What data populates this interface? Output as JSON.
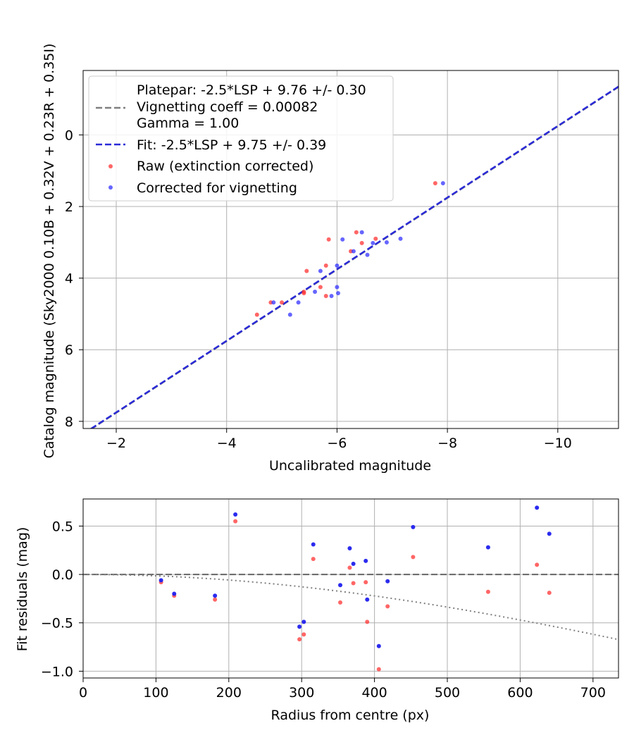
{
  "chart_data": [
    {
      "type": "scatter",
      "xlabel": "Uncalibrated magnitude",
      "ylabel": "Catalog magnitude (Sky2000 0.10B + 0.32V + 0.23R + 0.35I)",
      "xlim": [
        -1.4,
        -11.1
      ],
      "ylim": [
        8.2,
        -1.8
      ],
      "x_inverted": true,
      "y_inverted": true,
      "xticks": [
        -2,
        -4,
        -6,
        -8,
        -10
      ],
      "xtick_labels": [
        "−2",
        "−4",
        "−6",
        "−8",
        "−10"
      ],
      "yticks": [
        0,
        2,
        4,
        6,
        8
      ],
      "ytick_labels": [
        "0",
        "2",
        "4",
        "6",
        "8"
      ],
      "grid": true,
      "legend_position": "upper-left",
      "legend": [
        {
          "label_lines": [
            "Platepar: -2.5*LSP + 9.76 +/- 0.30",
            "Vignetting coeff = 0.00082",
            "Gamma = 1.00"
          ],
          "style": "dashed",
          "color": "#808080"
        },
        {
          "label_lines": [
            "Fit: -2.5*LSP + 9.75 +/- 0.39"
          ],
          "style": "dashed",
          "color": "#2a2ad8"
        },
        {
          "label_lines": [
            "Raw (extinction corrected)"
          ],
          "style": "marker",
          "color": "#ff3333"
        },
        {
          "label_lines": [
            "Corrected for vignetting"
          ],
          "style": "marker",
          "color": "#3333ff"
        }
      ],
      "lines": [
        {
          "name": "Platepar: -2.5*LSP + 9.76 +/- 0.30",
          "slope": 1,
          "intercept": 9.76,
          "color": "#808080",
          "dash": "dashed"
        },
        {
          "name": "Fit: -2.5*LSP + 9.75 +/- 0.39",
          "slope": 1,
          "intercept": 9.75,
          "color": "#2a2ad8",
          "dash": "dashed"
        }
      ],
      "series": [
        {
          "name": "Raw (extinction corrected)",
          "color": "#ff3333",
          "points": [
            [
              -4.55,
              5.02
            ],
            [
              -4.8,
              4.68
            ],
            [
              -5.0,
              4.68
            ],
            [
              -5.4,
              4.42
            ],
            [
              -5.4,
              4.38
            ],
            [
              -5.45,
              3.8
            ],
            [
              -5.7,
              4.25
            ],
            [
              -5.8,
              4.5
            ],
            [
              -5.8,
              3.65
            ],
            [
              -5.85,
              2.92
            ],
            [
              -6.25,
              3.25
            ],
            [
              -6.35,
              2.72
            ],
            [
              -6.45,
              3.02
            ],
            [
              -6.7,
              2.9
            ],
            [
              -7.78,
              1.35
            ]
          ]
        },
        {
          "name": "Corrected for vignetting",
          "color": "#3333ff",
          "points": [
            [
              -4.85,
              4.68
            ],
            [
              -5.15,
              5.02
            ],
            [
              -5.3,
              4.68
            ],
            [
              -5.6,
              4.38
            ],
            [
              -5.7,
              3.8
            ],
            [
              -5.9,
              4.5
            ],
            [
              -6.0,
              3.65
            ],
            [
              -6.0,
              4.25
            ],
            [
              -6.02,
              4.42
            ],
            [
              -6.1,
              2.92
            ],
            [
              -6.3,
              3.25
            ],
            [
              -6.45,
              2.72
            ],
            [
              -6.55,
              3.35
            ],
            [
              -6.65,
              3.02
            ],
            [
              -6.9,
              3.0
            ],
            [
              -7.15,
              2.9
            ],
            [
              -7.92,
              1.35
            ]
          ]
        }
      ]
    },
    {
      "type": "scatter",
      "xlabel": "Radius from centre (px)",
      "ylabel": "Fit residuals (mag)",
      "xlim": [
        0,
        735
      ],
      "ylim": [
        -1.07,
        0.78
      ],
      "xticks": [
        0,
        100,
        200,
        300,
        400,
        500,
        600,
        700
      ],
      "xtick_labels": [
        "0",
        "100",
        "200",
        "300",
        "400",
        "500",
        "600",
        "700"
      ],
      "yticks": [
        0.5,
        0.0,
        -0.5,
        -1.0
      ],
      "ytick_labels": [
        "0.5",
        "0.0",
        "−0.5",
        "−1.0"
      ],
      "grid": true,
      "reference_line": {
        "y": 0,
        "color": "#666666",
        "dash": "dashed"
      },
      "vignetting_curve": {
        "coeff": 0.00082,
        "color": "#808080",
        "dash": "dotted"
      },
      "series": [
        {
          "name": "Raw (extinction corrected)",
          "color": "#ff3333",
          "points": [
            [
              107,
              -0.08
            ],
            [
              125,
              -0.22
            ],
            [
              181,
              -0.26
            ],
            [
              209,
              0.55
            ],
            [
              297,
              -0.67
            ],
            [
              303,
              -0.62
            ],
            [
              316,
              0.16
            ],
            [
              353,
              -0.29
            ],
            [
              366,
              0.07
            ],
            [
              371,
              -0.09
            ],
            [
              388,
              -0.08
            ],
            [
              390,
              -0.49
            ],
            [
              406,
              -0.98
            ],
            [
              418,
              -0.33
            ],
            [
              453,
              0.18
            ],
            [
              556,
              -0.18
            ],
            [
              623,
              0.1
            ],
            [
              640,
              -0.19
            ]
          ]
        },
        {
          "name": "Corrected for vignetting",
          "color": "#2020ee",
          "points": [
            [
              107,
              -0.06
            ],
            [
              125,
              -0.2
            ],
            [
              181,
              -0.22
            ],
            [
              209,
              0.62
            ],
            [
              297,
              -0.54
            ],
            [
              303,
              -0.49
            ],
            [
              316,
              0.31
            ],
            [
              353,
              -0.11
            ],
            [
              366,
              0.27
            ],
            [
              371,
              0.11
            ],
            [
              388,
              0.14
            ],
            [
              390,
              -0.26
            ],
            [
              406,
              -0.74
            ],
            [
              418,
              -0.07
            ],
            [
              453,
              0.49
            ],
            [
              556,
              0.28
            ],
            [
              623,
              0.69
            ],
            [
              640,
              0.42
            ]
          ]
        }
      ]
    }
  ]
}
